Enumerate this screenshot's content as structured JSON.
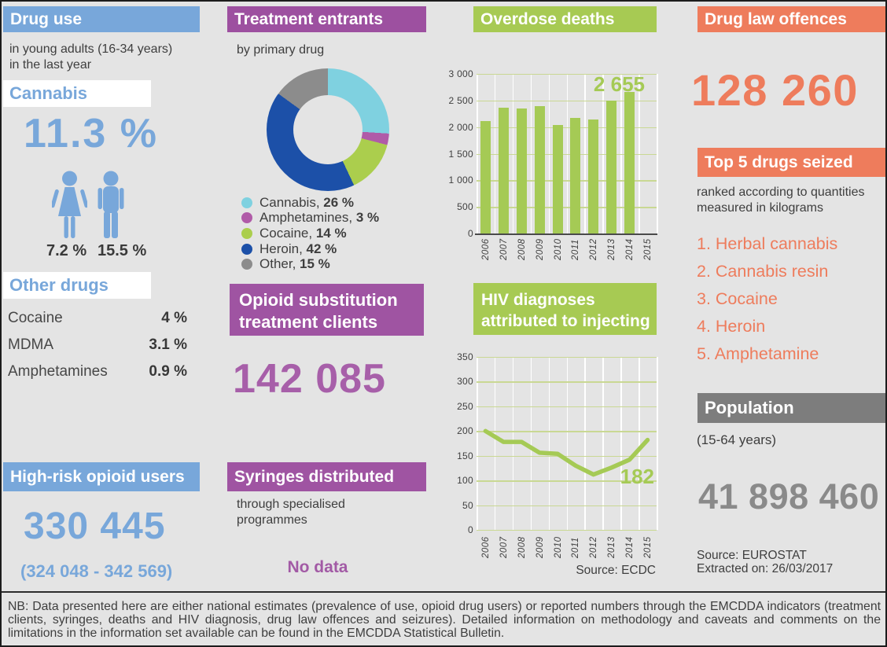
{
  "page": {
    "note": "NB: Data presented here are either national estimates (prevalence of use, opioid drug users) or reported numbers through the EMCDDA indicators (treatment clients, syringes, deaths and HIV diagnosis, drug law offences and seizures). Detailed information on methodology and caveats and comments on the limitations in the information set available can be found in the EMCDDA Statistical Bulletin."
  },
  "colors": {
    "blue": "#78a7da",
    "purple_header": "#9d50a0",
    "purple_accent": "#a75fa9",
    "green": "#a7ca53",
    "orange": "#ee7c5c",
    "gray_header": "#7d7d7d",
    "gray_accent": "#8a8a8a",
    "text": "#3e3e3e",
    "background": "#e4e4e4",
    "grid_green": "#c9d893"
  },
  "drug_use": {
    "title": "Drug use",
    "subtitle1": "in young adults (16-34 years)",
    "subtitle2": "in the last year",
    "cannabis_label": "Cannabis",
    "cannabis_value": "11.3 %",
    "female_value": "7.2 %",
    "male_value": "15.5 %",
    "other_label": "Other drugs",
    "other_drugs": [
      {
        "name": "Cocaine",
        "value": "4 %"
      },
      {
        "name": "MDMA",
        "value": "3.1 %"
      },
      {
        "name": "Amphetamines",
        "value": "0.9 %"
      }
    ],
    "high_risk_title": "High-risk opioid users",
    "high_risk_value": "330 445",
    "high_risk_range": "(324 048 - 342 569)"
  },
  "treatment": {
    "title": "Treatment entrants",
    "subtitle": "by primary drug",
    "legend": [
      {
        "label": "Cannabis,",
        "value": "26 %"
      },
      {
        "label": "Amphetamines,",
        "value": "3 %"
      },
      {
        "label": "Cocaine,",
        "value": "14 %"
      },
      {
        "label": "Heroin,",
        "value": "42 %"
      },
      {
        "label": "Other,",
        "value": "15 %"
      }
    ],
    "opioid_title1": "Opioid substitution",
    "opioid_title2": "treatment clients",
    "opioid_value": "142 085",
    "syringes_title": "Syringes distributed",
    "syringes_sub1": "through specialised",
    "syringes_sub2": "programmes",
    "syringes_value": "No data"
  },
  "overdose": {
    "title": "Overdose deaths",
    "highlight": "2 655"
  },
  "hiv": {
    "title1": "HIV diagnoses",
    "title2": "attributed to injecting",
    "highlight": "182",
    "source": "Source: ECDC"
  },
  "offences": {
    "title": "Drug law offences",
    "value": "128 260",
    "top5_title": "Top 5 drugs seized",
    "top5_sub1": "ranked according to quantities",
    "top5_sub2": "measured in kilograms",
    "items": [
      "1. Herbal cannabis",
      "2. Cannabis resin",
      "3. Cocaine",
      "4. Heroin",
      "5. Amphetamine"
    ],
    "population_title": "Population",
    "population_sub": "(15-64 years)",
    "population_value": "41 898 460",
    "source1": "Source: EUROSTAT",
    "source2": "Extracted on: 26/03/2017"
  },
  "chart_data": [
    {
      "id": "treatment_donut",
      "type": "pie",
      "title": "Treatment entrants by primary drug",
      "labels": [
        "Cannabis",
        "Amphetamines",
        "Cocaine",
        "Heroin",
        "Other"
      ],
      "values": [
        26,
        3,
        14,
        42,
        15
      ],
      "colors": [
        "#7fd1e0",
        "#b05ba8",
        "#abce4d",
        "#1c50a8",
        "#8c8c8c"
      ],
      "donut": true,
      "legend_position": "bottom-left"
    },
    {
      "id": "overdose_bars",
      "type": "bar",
      "title": "Overdose deaths",
      "categories": [
        "2006",
        "2007",
        "2008",
        "2009",
        "2010",
        "2011",
        "2012",
        "2013",
        "2014",
        "2015"
      ],
      "values": [
        2120,
        2370,
        2350,
        2390,
        2040,
        2170,
        2150,
        2500,
        2655,
        null
      ],
      "ylim": [
        0,
        3000
      ],
      "ytick_labels": [
        "3 000",
        "2 500",
        "2 000",
        "1 500",
        "1 000",
        "500",
        "0"
      ],
      "bar_color": "#a5ca55",
      "grid": true,
      "annotation": "2 655",
      "annotation_category": "2014"
    },
    {
      "id": "hiv_line",
      "type": "line",
      "title": "HIV diagnoses attributed to injecting",
      "categories": [
        "2006",
        "2007",
        "2008",
        "2009",
        "2010",
        "2011",
        "2012",
        "2013",
        "2014",
        "2015"
      ],
      "values": [
        200,
        178,
        178,
        156,
        154,
        130,
        112,
        126,
        142,
        182
      ],
      "ylim": [
        0,
        350
      ],
      "ytick_labels": [
        "350",
        "300",
        "250",
        "200",
        "150",
        "100",
        "50",
        "0"
      ],
      "line_color": "#a5ca55",
      "grid": true,
      "annotation": "182",
      "annotation_category": "2015",
      "source": "Source: ECDC"
    }
  ]
}
